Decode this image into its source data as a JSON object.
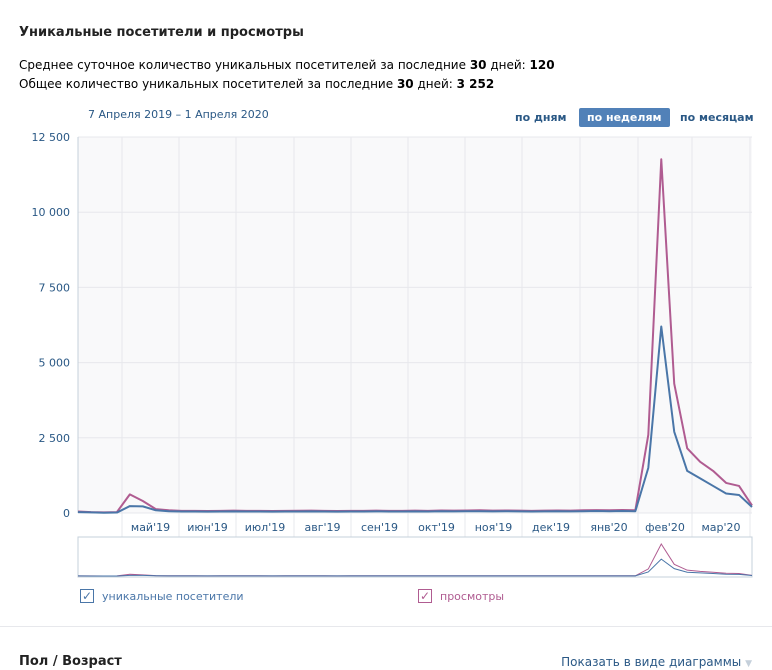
{
  "header": {
    "title": "Уникальные посетители и просмотры",
    "stat1_label": "Среднее суточное количество уникальных посетителей за последние ",
    "stat1_days": "30",
    "stat1_mid": " дней: ",
    "stat1_value": "120",
    "stat2_label": "Общее количество уникальных посетителей за последние ",
    "stat2_days": "30",
    "stat2_mid": " дней: ",
    "stat2_value": "3 252"
  },
  "range": "7 Апреля 2019 – 1 Апреля 2020",
  "period_buttons": [
    {
      "label": "по дням",
      "active": false
    },
    {
      "label": "по неделям",
      "active": true
    },
    {
      "label": "по месяцам",
      "active": false
    }
  ],
  "chart_data": {
    "type": "line",
    "title": "",
    "ylim": [
      0,
      12500
    ],
    "yticks": [
      0,
      2500,
      5000,
      7500,
      10000,
      12500
    ],
    "ytick_labels": [
      "0",
      "2 500",
      "5 000",
      "7 500",
      "10 000",
      "12 500"
    ],
    "month_labels": [
      "май'19",
      "июн'19",
      "июл'19",
      "авг'19",
      "сен'19",
      "окт'19",
      "ноя'19",
      "дек'19",
      "янв'20",
      "фев'20",
      "мар'20"
    ],
    "x_unit": "week index (weekly, 7 Apr 2019 – 1 Apr 2020)",
    "series": [
      {
        "name": "уникальные посетители",
        "color": "#4a76a8",
        "values": [
          30,
          20,
          10,
          15,
          230,
          220,
          90,
          60,
          50,
          50,
          45,
          50,
          55,
          50,
          50,
          45,
          50,
          50,
          55,
          50,
          45,
          50,
          50,
          55,
          50,
          50,
          55,
          50,
          60,
          55,
          60,
          60,
          55,
          60,
          55,
          50,
          55,
          60,
          55,
          60,
          65,
          60,
          65,
          60,
          1500,
          6200,
          2700,
          1400,
          1150,
          900,
          650,
          600,
          200
        ]
      },
      {
        "name": "просмотры",
        "color": "#b05c91",
        "values": [
          50,
          30,
          20,
          30,
          620,
          400,
          130,
          90,
          70,
          70,
          65,
          70,
          80,
          70,
          70,
          65,
          70,
          75,
          80,
          70,
          65,
          70,
          70,
          80,
          70,
          70,
          80,
          70,
          85,
          80,
          85,
          90,
          80,
          85,
          80,
          70,
          80,
          85,
          80,
          90,
          95,
          90,
          100,
          90,
          2600,
          11760,
          4300,
          2150,
          1700,
          1400,
          1000,
          900,
          250
        ]
      }
    ]
  },
  "legend": [
    "уникальные посетители",
    "просмотры"
  ],
  "section": {
    "title": "Пол / Возраст",
    "show_as": "Показать в виде диаграммы"
  }
}
